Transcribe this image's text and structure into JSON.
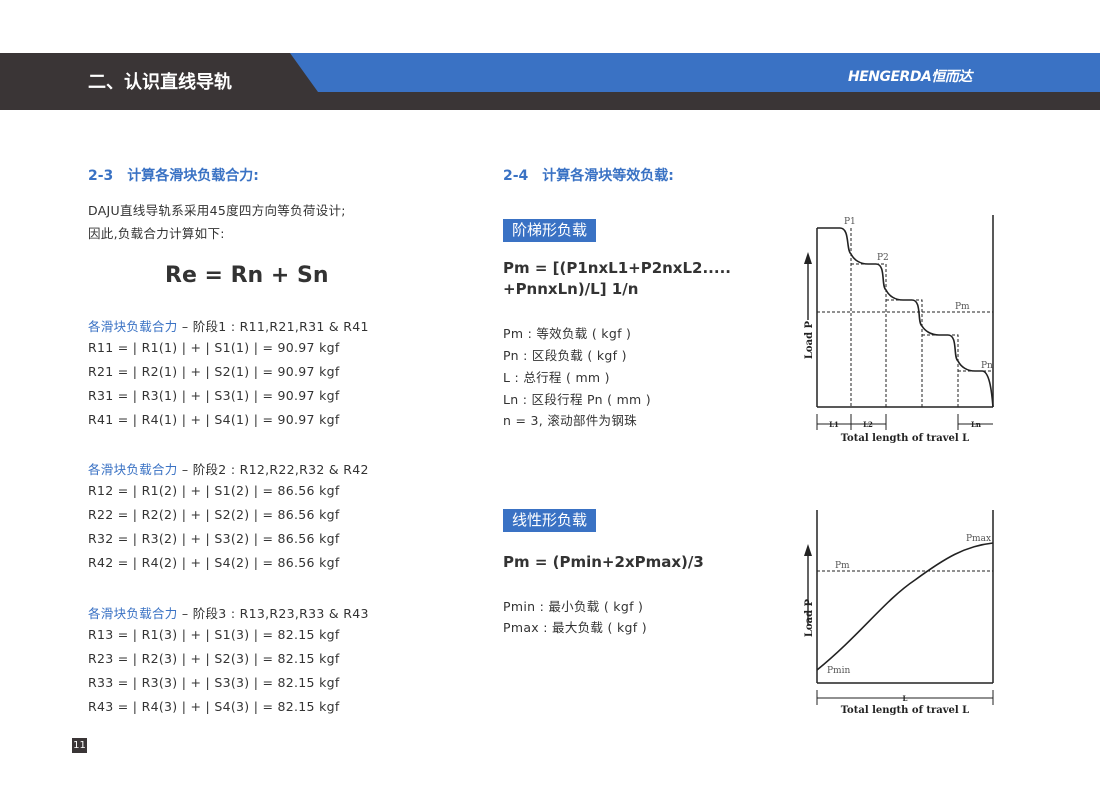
{
  "header": {
    "title": "二、认识直线导轨",
    "logo": "HENGERDA恒而达"
  },
  "left": {
    "heading": "2-3　计算各滑块负载合力:",
    "intro": [
      "DAJU直线导轨系采用45度四方向等负荷设计;",
      "因此,负载合力计算如下:"
    ],
    "main_formula": "Re = Rn + Sn",
    "groups": [
      {
        "label": "各滑块负载合力",
        "rest": " – 阶段1 : R11,R21,R31 & R41",
        "lines": [
          "R11 = | R1(1) | + | S1(1) | = 90.97 kgf",
          "R21 = | R2(1) | + | S2(1) | = 90.97 kgf",
          "R31 = | R3(1) | + | S3(1) | = 90.97 kgf",
          "R41 = | R4(1) | + | S4(1) | = 90.97 kgf"
        ]
      },
      {
        "label": "各滑块负载合力",
        "rest": " – 阶段2 : R12,R22,R32 & R42",
        "lines": [
          "R12 = | R1(2) | + | S1(2) | = 86.56 kgf",
          "R22 = | R2(2) | + | S2(2) | = 86.56 kgf",
          "R32 = | R3(2) | + | S3(2) | = 86.56 kgf",
          "R42 = | R4(2) | + | S4(2) | = 86.56 kgf"
        ]
      },
      {
        "label": "各滑块负载合力",
        "rest": " – 阶段3 : R13,R23,R33 & R43",
        "lines": [
          "R13 = | R1(3) | + | S1(3) | = 82.15 kgf",
          "R23 = | R2(3) | + | S2(3) | = 82.15 kgf",
          "R33 = | R3(3) | + | S3(3) | = 82.15 kgf",
          "R43 = | R4(3) | + | S4(3) | = 82.15 kgf"
        ]
      }
    ]
  },
  "right": {
    "heading": "2-4　计算各滑块等效负载:",
    "step": {
      "badge": "阶梯形负载",
      "formula": [
        "Pm = [(P1nxL1+P2nxL2.....",
        "+PnnxLn)/L] 1/n"
      ],
      "defs": [
        "Pm : 等效负载 ( kgf )",
        "Pn : 区段负载 ( kgf )",
        "L : 总行程 ( mm )",
        "Ln : 区段行程 Pn ( mm )",
        "n = 3, 滚动部件为钢珠"
      ],
      "diagram": {
        "p1": "P1",
        "p2": "P2",
        "pm": "Pm",
        "pn": "Pn",
        "l1": "L1",
        "l2": "L2",
        "ln": "Ln",
        "ylabel": "Load P",
        "xlabel": "Total length of travel L"
      }
    },
    "linear": {
      "badge": "线性形负载",
      "formula": "Pm = (Pmin+2xPmax)/3",
      "defs": [
        "Pmin  : 最小负载 ( kgf )",
        "Pmax : 最大负载 ( kgf )"
      ],
      "diagram": {
        "pmax": "Pmax",
        "pm": "Pm",
        "pmin": "Pmin",
        "l": "L",
        "ylabel": "Load P",
        "xlabel": "Total length of travel L"
      }
    }
  },
  "page_number": "11",
  "colors": {
    "accent": "#3a72c4",
    "dark": "#3a3536"
  }
}
